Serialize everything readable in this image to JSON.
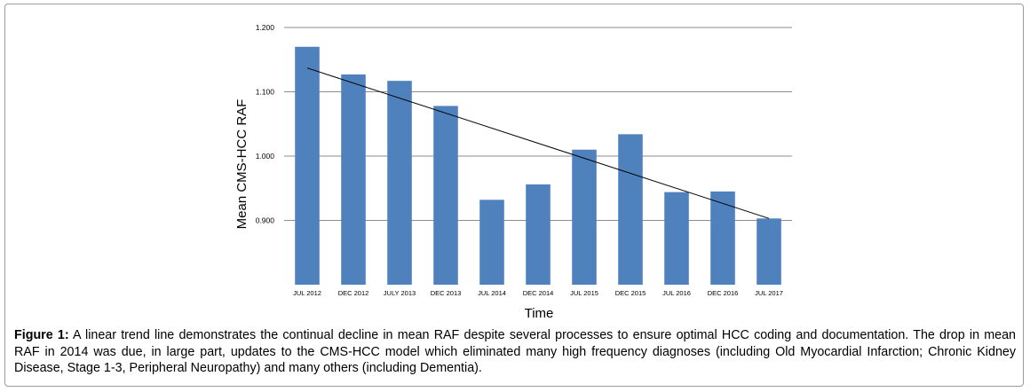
{
  "chart_data": {
    "type": "bar",
    "categories": [
      "JUL 2012",
      "DEC 2012",
      "JULY 2013",
      "DEC 2013",
      "JUL 2014",
      "DEC 2014",
      "JUL 2015",
      "DEC 2015",
      "JUL 2016",
      "DEC 2016",
      "JUL 2017"
    ],
    "values": [
      1.17,
      1.127,
      1.117,
      1.078,
      0.932,
      0.956,
      1.01,
      1.034,
      0.944,
      0.945,
      0.903
    ],
    "trendline": {
      "start": 1.137,
      "end": 0.903
    },
    "xlabel": "Time",
    "ylabel": "Mean CMS-HCC RAF",
    "ylim": [
      0.8,
      1.2
    ],
    "yticks": [
      0.9,
      1.0,
      1.1,
      1.2
    ],
    "ytick_labels": [
      "0.900",
      "1.000",
      "1.100",
      "1.200"
    ],
    "grid": true,
    "bar_color": "#4f81bd"
  },
  "caption": {
    "label": "Figure 1:",
    "text": " A linear trend line demonstrates the continual decline in mean RAF despite several processes to ensure optimal HCC coding and documentation. The drop in mean RAF in 2014 was due, in large part, updates to the CMS-HCC model which eliminated many high frequency diagnoses (including Old Myocardial Infarction; Chronic Kidney Disease, Stage 1-3, Peripheral Neuropathy) and many others (including Dementia)."
  }
}
